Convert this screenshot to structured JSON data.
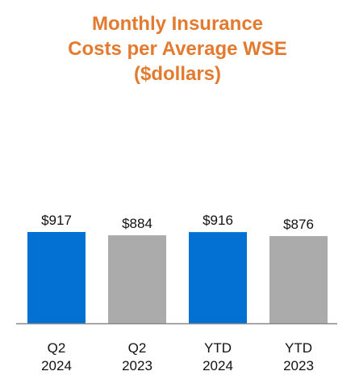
{
  "colors": {
    "title": "#E37A2E",
    "primary_bar": "#0370D3",
    "comparison_bar": "#ABABAB",
    "axis": "#888888",
    "text": "#111111"
  },
  "chart_data": {
    "type": "bar",
    "title": [
      "Monthly Insurance",
      "Costs per Average WSE",
      "($dollars)"
    ],
    "categories": [
      [
        "Q2",
        "2024"
      ],
      [
        "Q2",
        "2023"
      ],
      [
        "YTD",
        "2024"
      ],
      [
        "YTD",
        "2023"
      ]
    ],
    "values": [
      917,
      884,
      916,
      876
    ],
    "data_labels": [
      "$917",
      "$884",
      "$916",
      "$876"
    ],
    "bar_color_keys": [
      "primary_bar",
      "comparison_bar",
      "primary_bar",
      "comparison_bar"
    ],
    "xlabel": "",
    "ylabel": "",
    "grid": false,
    "legend": "none"
  }
}
